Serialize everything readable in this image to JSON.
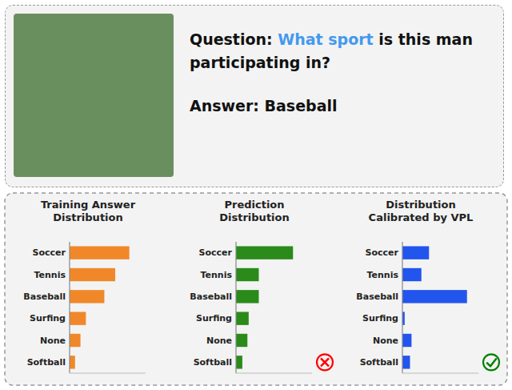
{
  "chart_data": [
    {
      "type": "bar",
      "orientation": "horizontal",
      "title": "Training Answer\nDistribution",
      "categories": [
        "Soccer",
        "Tennis",
        "Baseball",
        "Surfing",
        "None",
        "Softball"
      ],
      "values": [
        5.5,
        4.2,
        3.2,
        1.5,
        1.0,
        0.5
      ],
      "color": "#F0882A",
      "xlim": [
        0,
        7
      ],
      "xticks": [],
      "tick_labels": "y",
      "grid": false,
      "annotations": [
        [
          {
            "text": "Question:"
          },
          {
            "text": "What sport",
            "color": "#4499EE"
          },
          {
            "text": "is this man participating in?"
          }
        ],
        [
          {
            "text": "Answer: Baseball"
          }
        ]
      ]
    },
    {
      "type": "bar",
      "orientation": "horizontal",
      "title": "Prediction\nDistribution",
      "categories": [
        "Soccer",
        "Tennis",
        "Baseball",
        "Surfing",
        "None",
        "Softball"
      ],
      "values": [
        4.5,
        1.8,
        1.8,
        1.0,
        0.9,
        0.5
      ],
      "color": "#2A8B1A",
      "xlim": [
        0,
        6
      ],
      "xticks": [],
      "tick_labels": "y",
      "grid": false
    },
    {
      "type": "bar",
      "orientation": "horizontal",
      "title": "Distribution\nCalibrated by VPL",
      "categories": [
        "Soccer",
        "Tennis",
        "Baseball",
        "Surfing",
        "None",
        "Softball"
      ],
      "values": [
        3.5,
        2.5,
        8.5,
        0.3,
        1.2,
        1.0
      ],
      "color": "#2255EE",
      "xlim": [
        0,
        10
      ],
      "xticks": [],
      "tick_labels": "y",
      "grid": false
    }
  ]
}
